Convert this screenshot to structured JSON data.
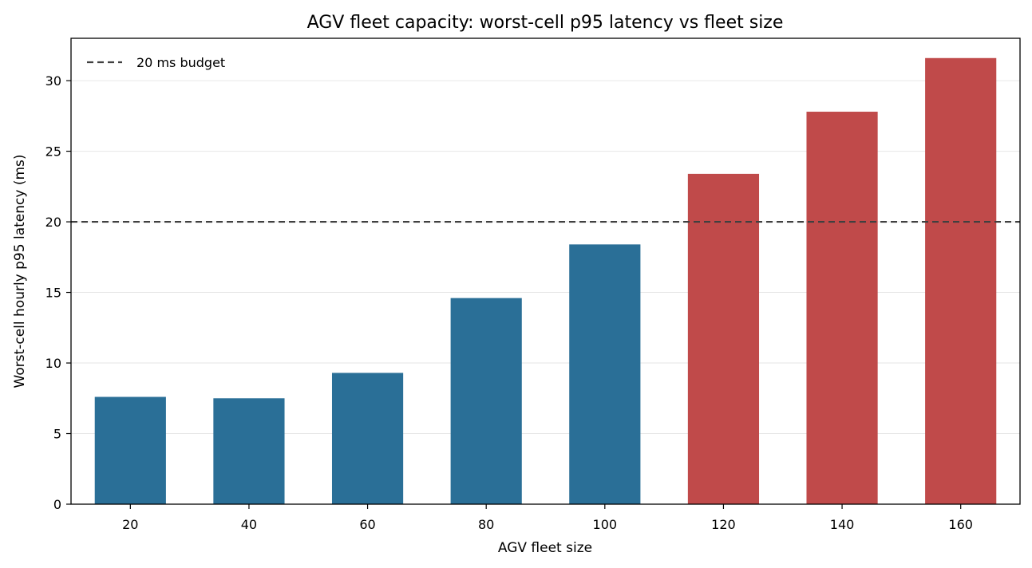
{
  "chart_data": {
    "type": "bar",
    "title": "AGV fleet capacity: worst-cell p95 latency vs fleet size",
    "xlabel": "AGV fleet size",
    "ylabel": "Worst-cell hourly p95 latency (ms)",
    "categories": [
      "20",
      "40",
      "60",
      "80",
      "100",
      "120",
      "140",
      "160"
    ],
    "values": [
      7.6,
      7.5,
      9.3,
      14.6,
      18.4,
      23.4,
      27.8,
      31.6
    ],
    "bar_colors": [
      "#2a6f97",
      "#2a6f97",
      "#2a6f97",
      "#2a6f97",
      "#2a6f97",
      "#c04a4a",
      "#c04a4a",
      "#c04a4a"
    ],
    "ylim": [
      0,
      33
    ],
    "yticks": [
      0,
      5,
      10,
      15,
      20,
      25,
      30
    ],
    "grid": "y",
    "reference_line": {
      "y": 20,
      "label": "20 ms budget",
      "style": "dashed",
      "color": "#404040"
    },
    "legend": {
      "placement": "top-left",
      "entries": [
        "20 ms budget"
      ]
    }
  }
}
